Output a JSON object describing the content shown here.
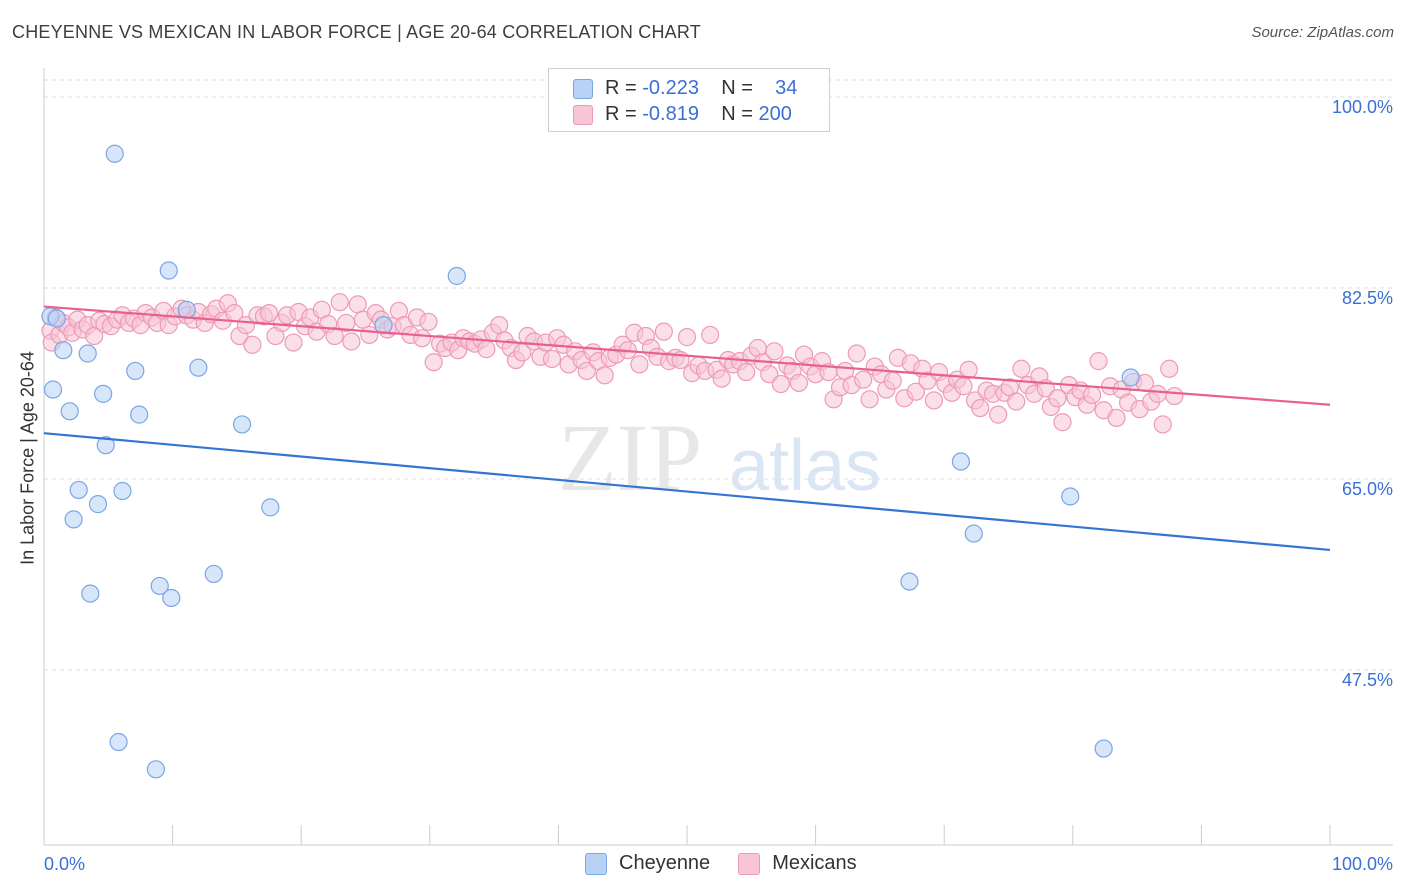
{
  "title": "CHEYENNE VS MEXICAN IN LABOR FORCE | AGE 20-64 CORRELATION CHART",
  "source": "Source: ZipAtlas.com",
  "watermark": {
    "zip": "ZIP",
    "atlas": "atlas"
  },
  "legend": {
    "r_label": "R =",
    "n_label": "N =",
    "rows": [
      {
        "series": "Cheyenne",
        "r": "-0.223",
        "n": "34"
      },
      {
        "series": "Mexicans",
        "r": "-0.819",
        "n": "200"
      }
    ]
  },
  "colors": {
    "cheyenne_fill": "#b8d1f5",
    "cheyenne_stroke": "#7aa6e3",
    "cheyenne_line": "#3275d3",
    "mexicans_fill": "#f8c5d6",
    "mexicans_stroke": "#ee9ab6",
    "mexicans_line": "#e8608d",
    "tick_label": "#3a6fd8",
    "grid": "#dddddd"
  },
  "chart_data": {
    "type": "scatter",
    "ylabel": "In Labor Force | Age 20-64",
    "xlabel": "",
    "xlim": [
      0,
      100
    ],
    "ylim": [
      33.0,
      102.0
    ],
    "x_tick_labels": [
      "0.0%",
      "100.0%"
    ],
    "y_ticks": [
      47.5,
      65.0,
      82.5,
      100.0
    ],
    "y_tick_labels": [
      "47.5%",
      "65.0%",
      "82.5%",
      "100.0%"
    ],
    "grid": "horizontal dashed",
    "legend_placement": "top-center",
    "series": [
      {
        "name": "Cheyenne",
        "trend": {
          "x": [
            0,
            100
          ],
          "y": [
            69.2,
            58.5
          ]
        },
        "points": [
          [
            0.5,
            79.9
          ],
          [
            0.7,
            73.2
          ],
          [
            1.5,
            76.8
          ],
          [
            2.0,
            71.2
          ],
          [
            2.3,
            61.3
          ],
          [
            2.7,
            64.0
          ],
          [
            3.4,
            76.5
          ],
          [
            3.6,
            54.5
          ],
          [
            4.2,
            62.7
          ],
          [
            4.6,
            72.8
          ],
          [
            4.8,
            68.1
          ],
          [
            5.5,
            94.8
          ],
          [
            5.8,
            40.9
          ],
          [
            6.1,
            63.9
          ],
          [
            7.1,
            74.9
          ],
          [
            7.4,
            70.9
          ],
          [
            8.7,
            38.4
          ],
          [
            9.0,
            55.2
          ],
          [
            9.7,
            84.1
          ],
          [
            9.9,
            54.1
          ],
          [
            11.1,
            80.5
          ],
          [
            12.0,
            75.2
          ],
          [
            13.2,
            56.3
          ],
          [
            15.4,
            70.0
          ],
          [
            17.6,
            62.4
          ],
          [
            26.4,
            79.1
          ],
          [
            32.1,
            83.6
          ],
          [
            67.3,
            55.6
          ],
          [
            71.3,
            66.6
          ],
          [
            72.3,
            60.0
          ],
          [
            79.8,
            63.4
          ],
          [
            82.4,
            40.3
          ],
          [
            84.5,
            74.3
          ],
          [
            1.0,
            79.7
          ]
        ]
      },
      {
        "name": "Mexicans",
        "trend": {
          "x": [
            0,
            100
          ],
          "y": [
            80.8,
            71.8
          ]
        },
        "points": [
          [
            0.5,
            78.6
          ],
          [
            0.6,
            77.5
          ],
          [
            0.9,
            79.8
          ],
          [
            1.2,
            78.2
          ],
          [
            1.5,
            79.3
          ],
          [
            1.9,
            78.9
          ],
          [
            2.2,
            78.4
          ],
          [
            2.6,
            79.6
          ],
          [
            3.0,
            78.7
          ],
          [
            3.4,
            79.1
          ],
          [
            3.9,
            78.1
          ],
          [
            4.3,
            79.5
          ],
          [
            4.7,
            79.2
          ],
          [
            5.2,
            79.0
          ],
          [
            5.7,
            79.6
          ],
          [
            6.1,
            80.0
          ],
          [
            6.6,
            79.3
          ],
          [
            7.0,
            79.7
          ],
          [
            7.5,
            79.1
          ],
          [
            7.9,
            80.2
          ],
          [
            8.4,
            79.8
          ],
          [
            8.8,
            79.3
          ],
          [
            9.3,
            80.4
          ],
          [
            9.7,
            79.1
          ],
          [
            10.2,
            79.9
          ],
          [
            10.7,
            80.6
          ],
          [
            11.1,
            80.0
          ],
          [
            11.6,
            79.6
          ],
          [
            12.0,
            80.3
          ],
          [
            12.5,
            79.3
          ],
          [
            13.0,
            80.1
          ],
          [
            13.4,
            80.6
          ],
          [
            13.9,
            79.5
          ],
          [
            14.3,
            81.1
          ],
          [
            14.8,
            80.2
          ],
          [
            15.2,
            78.1
          ],
          [
            15.7,
            79.1
          ],
          [
            16.2,
            77.3
          ],
          [
            16.6,
            80.0
          ],
          [
            17.1,
            79.9
          ],
          [
            17.5,
            80.2
          ],
          [
            18.0,
            78.1
          ],
          [
            18.5,
            79.3
          ],
          [
            18.9,
            80.0
          ],
          [
            19.4,
            77.5
          ],
          [
            19.8,
            80.3
          ],
          [
            20.3,
            79.0
          ],
          [
            20.7,
            79.8
          ],
          [
            21.2,
            78.5
          ],
          [
            21.6,
            80.5
          ],
          [
            22.1,
            79.2
          ],
          [
            22.6,
            78.1
          ],
          [
            23.0,
            81.2
          ],
          [
            23.5,
            79.3
          ],
          [
            23.9,
            77.6
          ],
          [
            24.4,
            81.0
          ],
          [
            24.8,
            79.6
          ],
          [
            25.3,
            78.2
          ],
          [
            25.8,
            80.2
          ],
          [
            26.2,
            79.6
          ],
          [
            26.7,
            78.7
          ],
          [
            27.1,
            79.0
          ],
          [
            27.6,
            80.4
          ],
          [
            28.0,
            79.1
          ],
          [
            28.5,
            78.2
          ],
          [
            29.0,
            79.8
          ],
          [
            29.4,
            77.9
          ],
          [
            29.9,
            79.4
          ],
          [
            30.3,
            75.7
          ],
          [
            30.8,
            77.4
          ],
          [
            31.2,
            77.0
          ],
          [
            31.7,
            77.5
          ],
          [
            32.2,
            76.8
          ],
          [
            32.6,
            77.9
          ],
          [
            33.1,
            77.6
          ],
          [
            33.5,
            77.4
          ],
          [
            34.0,
            77.8
          ],
          [
            34.4,
            76.9
          ],
          [
            34.9,
            78.4
          ],
          [
            35.4,
            79.1
          ],
          [
            35.8,
            77.7
          ],
          [
            36.3,
            77.0
          ],
          [
            36.7,
            75.9
          ],
          [
            37.2,
            76.6
          ],
          [
            37.6,
            78.1
          ],
          [
            38.1,
            77.6
          ],
          [
            38.6,
            76.2
          ],
          [
            39.0,
            77.5
          ],
          [
            39.5,
            76.0
          ],
          [
            39.9,
            77.9
          ],
          [
            40.4,
            77.3
          ],
          [
            40.8,
            75.5
          ],
          [
            41.3,
            76.7
          ],
          [
            41.8,
            75.9
          ],
          [
            42.2,
            74.9
          ],
          [
            42.7,
            76.6
          ],
          [
            43.1,
            75.8
          ],
          [
            43.6,
            74.5
          ],
          [
            44.0,
            76.1
          ],
          [
            44.5,
            76.4
          ],
          [
            45.0,
            77.3
          ],
          [
            45.4,
            76.8
          ],
          [
            45.9,
            78.4
          ],
          [
            46.3,
            75.5
          ],
          [
            46.8,
            78.1
          ],
          [
            47.2,
            77.0
          ],
          [
            47.7,
            76.2
          ],
          [
            48.2,
            78.5
          ],
          [
            48.6,
            75.8
          ],
          [
            49.1,
            76.1
          ],
          [
            49.5,
            75.9
          ],
          [
            50.0,
            78.0
          ],
          [
            50.4,
            74.7
          ],
          [
            50.9,
            75.4
          ],
          [
            51.4,
            74.9
          ],
          [
            51.8,
            78.2
          ],
          [
            52.3,
            75.0
          ],
          [
            52.7,
            74.2
          ],
          [
            53.2,
            75.9
          ],
          [
            53.6,
            75.5
          ],
          [
            54.1,
            75.8
          ],
          [
            54.6,
            74.8
          ],
          [
            55.0,
            76.3
          ],
          [
            55.5,
            77.0
          ],
          [
            55.9,
            75.7
          ],
          [
            56.4,
            74.6
          ],
          [
            56.8,
            76.7
          ],
          [
            57.3,
            73.7
          ],
          [
            57.8,
            75.4
          ],
          [
            58.2,
            74.9
          ],
          [
            58.7,
            73.8
          ],
          [
            59.1,
            76.4
          ],
          [
            59.6,
            75.3
          ],
          [
            60.0,
            74.6
          ],
          [
            60.5,
            75.8
          ],
          [
            61.0,
            74.8
          ],
          [
            61.4,
            72.3
          ],
          [
            61.9,
            73.4
          ],
          [
            62.3,
            74.9
          ],
          [
            62.8,
            73.6
          ],
          [
            63.2,
            76.5
          ],
          [
            63.7,
            74.1
          ],
          [
            64.2,
            72.3
          ],
          [
            64.6,
            75.3
          ],
          [
            65.1,
            74.6
          ],
          [
            65.5,
            73.2
          ],
          [
            66.0,
            74.0
          ],
          [
            66.4,
            76.1
          ],
          [
            66.9,
            72.4
          ],
          [
            67.4,
            75.6
          ],
          [
            67.8,
            73.0
          ],
          [
            68.3,
            75.1
          ],
          [
            68.7,
            74.0
          ],
          [
            69.2,
            72.2
          ],
          [
            69.6,
            74.8
          ],
          [
            70.1,
            73.7
          ],
          [
            70.6,
            72.9
          ],
          [
            71.0,
            74.1
          ],
          [
            71.5,
            73.5
          ],
          [
            71.9,
            75.0
          ],
          [
            72.4,
            72.2
          ],
          [
            72.8,
            71.5
          ],
          [
            73.3,
            73.1
          ],
          [
            73.8,
            72.8
          ],
          [
            74.2,
            70.9
          ],
          [
            74.7,
            72.9
          ],
          [
            75.1,
            73.4
          ],
          [
            75.6,
            72.1
          ],
          [
            76.0,
            75.1
          ],
          [
            76.5,
            73.6
          ],
          [
            77.0,
            72.8
          ],
          [
            77.4,
            74.4
          ],
          [
            77.9,
            73.3
          ],
          [
            78.3,
            71.6
          ],
          [
            78.8,
            72.4
          ],
          [
            79.2,
            70.2
          ],
          [
            79.7,
            73.6
          ],
          [
            80.2,
            72.5
          ],
          [
            80.6,
            73.1
          ],
          [
            81.1,
            71.8
          ],
          [
            81.5,
            72.7
          ],
          [
            82.0,
            75.8
          ],
          [
            82.4,
            71.3
          ],
          [
            82.9,
            73.5
          ],
          [
            83.4,
            70.6
          ],
          [
            83.8,
            73.2
          ],
          [
            84.3,
            72.0
          ],
          [
            84.7,
            73.9
          ],
          [
            85.2,
            71.4
          ],
          [
            85.6,
            73.8
          ],
          [
            86.1,
            72.1
          ],
          [
            86.6,
            72.8
          ],
          [
            87.0,
            70.0
          ],
          [
            87.5,
            75.1
          ],
          [
            87.9,
            72.6
          ]
        ]
      }
    ]
  }
}
